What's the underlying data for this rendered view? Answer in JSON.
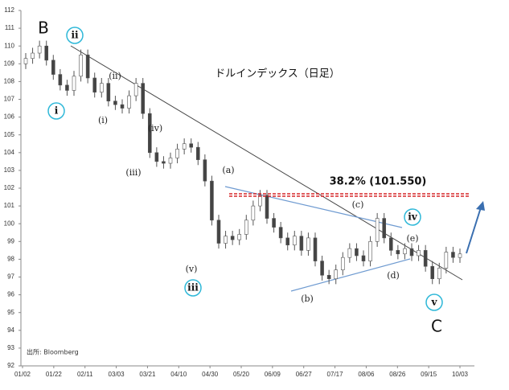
{
  "chart_data": {
    "type": "candlestick",
    "title": "ドルインデックス（日足）",
    "source": "出所: Bloomberg",
    "categories": [
      "01/02",
      "01/22",
      "02/11",
      "03/03",
      "03/21",
      "04/10",
      "04/30",
      "05/20",
      "06/09",
      "06/27",
      "07/17",
      "08/06",
      "08/26",
      "09/15",
      "10/03"
    ],
    "ylim": [
      92,
      112
    ],
    "yticks": [
      92,
      93,
      94,
      95,
      96,
      97,
      98,
      99,
      100,
      101,
      102,
      103,
      104,
      105,
      106,
      107,
      108,
      109,
      110,
      111,
      112
    ],
    "open": [
      109.0,
      109.3,
      109.6,
      110.0,
      109.2,
      108.4,
      107.8,
      107.5,
      108.3,
      109.5,
      108.2,
      107.4,
      107.9,
      106.9,
      106.7,
      106.5,
      107.2,
      107.9,
      106.2,
      104.0,
      103.5,
      103.4,
      103.7,
      104.2,
      104.5,
      104.3,
      103.6,
      102.4,
      100.2,
      98.9,
      99.3,
      99.1,
      99.4,
      100.2,
      101.0,
      101.6,
      100.3,
      99.8,
      99.2,
      98.8,
      99.3,
      98.5,
      99.2,
      97.9,
      97.1,
      96.9,
      97.4,
      98.1,
      98.6,
      98.2,
      97.9,
      99.0,
      100.3,
      99.2,
      98.5,
      98.3,
      98.6,
      98.2,
      98.5,
      97.6,
      96.9,
      97.5,
      98.4,
      98.1
    ],
    "high": [
      109.6,
      109.9,
      110.3,
      110.3,
      109.5,
      108.7,
      108.1,
      108.6,
      109.8,
      109.8,
      108.5,
      108.2,
      108.2,
      107.2,
      107.0,
      107.5,
      108.2,
      108.2,
      106.5,
      104.3,
      103.8,
      104.0,
      104.5,
      104.8,
      104.8,
      104.6,
      103.9,
      102.7,
      100.5,
      99.6,
      99.6,
      99.7,
      100.5,
      101.3,
      101.9,
      101.9,
      100.6,
      100.1,
      99.5,
      99.6,
      99.6,
      99.5,
      99.5,
      98.2,
      97.4,
      97.7,
      98.4,
      98.9,
      98.9,
      98.5,
      99.3,
      100.6,
      100.6,
      99.5,
      98.8,
      98.9,
      98.9,
      98.8,
      98.8,
      97.9,
      97.8,
      98.7,
      98.7,
      98.6
    ],
    "low": [
      108.7,
      109.0,
      109.3,
      108.9,
      108.1,
      107.5,
      107.2,
      107.2,
      108.0,
      107.9,
      107.1,
      107.1,
      106.6,
      106.4,
      106.2,
      106.2,
      106.9,
      105.9,
      103.7,
      103.2,
      103.1,
      103.1,
      103.4,
      103.9,
      104.0,
      103.3,
      102.1,
      99.9,
      98.6,
      98.6,
      98.8,
      98.8,
      99.1,
      99.9,
      100.7,
      100.0,
      99.5,
      98.9,
      98.5,
      98.5,
      98.2,
      98.2,
      97.6,
      96.8,
      96.6,
      96.6,
      97.1,
      97.8,
      97.9,
      97.6,
      97.6,
      98.7,
      98.9,
      98.2,
      98.0,
      98.0,
      97.9,
      97.9,
      97.3,
      96.6,
      96.6,
      97.2,
      97.8,
      97.8
    ],
    "close": [
      109.3,
      109.6,
      110.0,
      109.2,
      108.4,
      107.8,
      107.5,
      108.3,
      109.5,
      108.2,
      107.4,
      107.9,
      106.9,
      106.7,
      106.5,
      107.2,
      107.9,
      106.2,
      104.0,
      103.5,
      103.4,
      103.7,
      104.2,
      104.5,
      104.3,
      103.6,
      102.4,
      100.2,
      98.9,
      99.3,
      99.1,
      99.4,
      100.2,
      101.0,
      101.6,
      100.3,
      99.8,
      99.2,
      98.8,
      99.3,
      98.5,
      99.2,
      97.9,
      97.1,
      96.9,
      97.4,
      98.1,
      98.6,
      98.2,
      97.9,
      99.0,
      100.3,
      99.2,
      98.5,
      98.3,
      98.6,
      98.2,
      98.5,
      97.6,
      96.9,
      97.5,
      98.4,
      98.1,
      98.3
    ],
    "retracement": {
      "label": "38.2% (101.550)",
      "value": 101.55,
      "color": "#d62728"
    },
    "waves": [
      "B",
      "C"
    ],
    "circled_waves": [
      "ii",
      "i",
      "iii",
      "iv",
      "v"
    ],
    "sub_waves": [
      "(ii)",
      "(i)",
      "(iii)",
      "(iv)",
      "(v)",
      "(a)",
      "(b)",
      "(c)",
      "(d)",
      "(e)"
    ]
  }
}
